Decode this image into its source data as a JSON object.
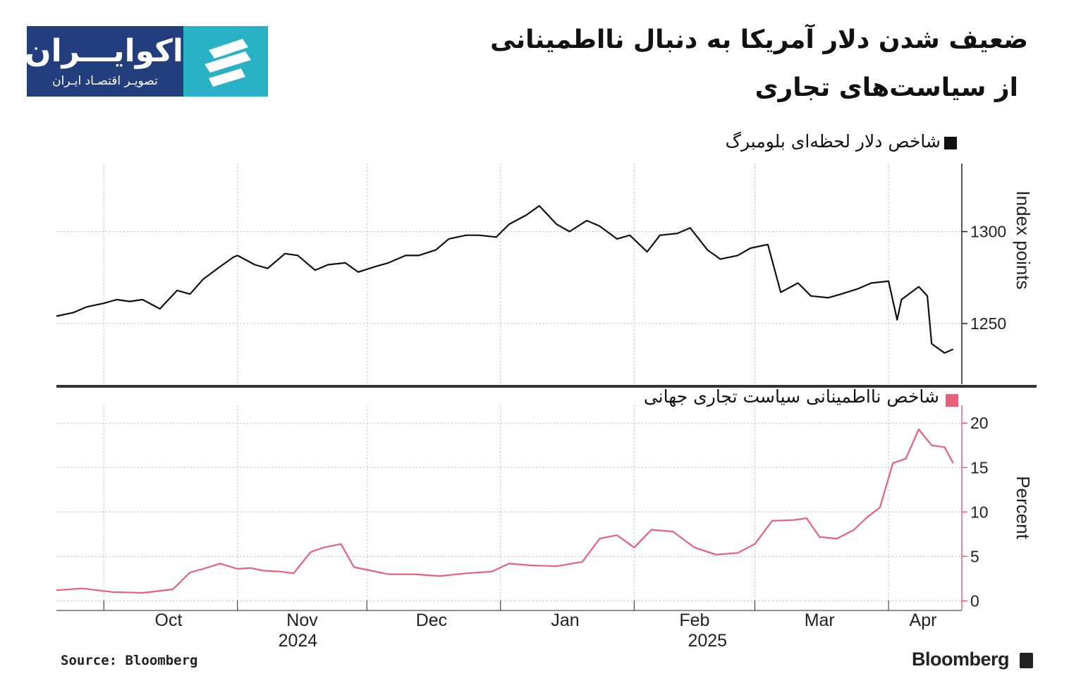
{
  "logo": {
    "name": "اکوایـــران",
    "tagline": "تصویـر اقتصـاد ایـران"
  },
  "title": {
    "line1": "ضعیف شدن دلار آمریکا به دنبال نااطمینانی",
    "line2": "از سیاست‌های تجاری"
  },
  "source": "Source: Bloomberg",
  "brand": "Bloomberg",
  "colors": {
    "dxy_line": "#111111",
    "tpu_line": "#e8607a",
    "tpu_axis": "#e8607a",
    "grid": "#bdbdbd",
    "logo_bg": "#223e7c",
    "logo_accent": "#29b1c5"
  },
  "chart_data": [
    {
      "type": "line",
      "panel": "top",
      "legend_label": "شاخص دلار لحظه‌ای بلومبرگ",
      "ylabel": "Index points",
      "y_ticks": [
        1250,
        1300
      ],
      "ylim": [
        1217,
        1337
      ],
      "grid": true,
      "x_ticks": [
        "Oct",
        "Nov",
        "Dec",
        "Jan",
        "Feb",
        "Mar",
        "Apr"
      ],
      "x_years": [
        "2024",
        "2025"
      ],
      "series": [
        {
          "x": [
            "2024-09-20",
            "2024-09-24",
            "2024-09-27",
            "2024-10-01",
            "2024-10-04",
            "2024-10-07",
            "2024-10-10",
            "2024-10-14",
            "2024-10-18",
            "2024-10-21",
            "2024-10-24",
            "2024-10-28",
            "2024-10-31",
            "2024-11-01",
            "2024-11-05",
            "2024-11-08",
            "2024-11-12",
            "2024-11-15",
            "2024-11-19",
            "2024-11-22",
            "2024-11-26",
            "2024-11-29",
            "2024-12-03",
            "2024-12-06",
            "2024-12-10",
            "2024-12-13",
            "2024-12-17",
            "2024-12-20",
            "2024-12-24",
            "2024-12-27",
            "2024-12-31",
            "2025-01-03",
            "2025-01-07",
            "2025-01-10",
            "2025-01-14",
            "2025-01-17",
            "2025-01-21",
            "2025-01-24",
            "2025-01-28",
            "2025-01-31",
            "2025-02-04",
            "2025-02-07",
            "2025-02-11",
            "2025-02-14",
            "2025-02-18",
            "2025-02-21",
            "2025-02-25",
            "2025-02-28",
            "2025-03-04",
            "2025-03-07",
            "2025-03-11",
            "2025-03-14",
            "2025-03-18",
            "2025-03-21",
            "2025-03-25",
            "2025-03-28",
            "2025-04-01",
            "2025-04-03",
            "2025-04-04",
            "2025-04-08",
            "2025-04-10",
            "2025-04-11",
            "2025-04-14",
            "2025-04-16"
          ],
          "y": [
            1254,
            1256,
            1259,
            1261,
            1263,
            1262,
            1263,
            1258,
            1268,
            1266,
            1274,
            1281,
            1286,
            1287,
            1282,
            1280,
            1288,
            1287,
            1279,
            1282,
            1283,
            1278,
            1281,
            1283,
            1287,
            1287,
            1290,
            1296,
            1298,
            1298,
            1297,
            1304,
            1309,
            1314,
            1304,
            1300,
            1306,
            1303,
            1296,
            1298,
            1289,
            1298,
            1299,
            1302,
            1290,
            1285,
            1287,
            1291,
            1293,
            1267,
            1272,
            1265,
            1264,
            1266,
            1269,
            1272,
            1273,
            1252,
            1263,
            1270,
            1265,
            1239,
            1234,
            1236
          ]
        }
      ]
    },
    {
      "type": "line",
      "panel": "bottom",
      "legend_label": "شاخص نااطمینانی سیاست تجاری جهانی",
      "ylabel": "Percent",
      "y_ticks": [
        0,
        5,
        10,
        15,
        20
      ],
      "ylim": [
        -1,
        22
      ],
      "grid": true,
      "x_ticks": [
        "Oct",
        "Nov",
        "Dec",
        "Jan",
        "Feb",
        "Mar",
        "Apr"
      ],
      "x_years": [
        "2024",
        "2025"
      ],
      "series": [
        {
          "x": [
            "2024-09-20",
            "2024-09-26",
            "2024-10-03",
            "2024-10-10",
            "2024-10-17",
            "2024-10-21",
            "2024-10-24",
            "2024-10-28",
            "2024-11-01",
            "2024-11-04",
            "2024-11-07",
            "2024-11-11",
            "2024-11-14",
            "2024-11-18",
            "2024-11-21",
            "2024-11-25",
            "2024-11-28",
            "2024-12-02",
            "2024-12-06",
            "2024-12-12",
            "2024-12-18",
            "2024-12-24",
            "2024-12-30",
            "2025-01-03",
            "2025-01-08",
            "2025-01-14",
            "2025-01-20",
            "2025-01-24",
            "2025-01-28",
            "2025-02-01",
            "2025-02-05",
            "2025-02-10",
            "2025-02-15",
            "2025-02-20",
            "2025-02-25",
            "2025-03-01",
            "2025-03-05",
            "2025-03-10",
            "2025-03-13",
            "2025-03-16",
            "2025-03-20",
            "2025-03-24",
            "2025-03-27",
            "2025-03-30",
            "2025-04-02",
            "2025-04-05",
            "2025-04-08",
            "2025-04-11",
            "2025-04-14",
            "2025-04-16"
          ],
          "y": [
            1.2,
            1.4,
            1.0,
            0.9,
            1.3,
            3.2,
            3.6,
            4.2,
            3.6,
            3.7,
            3.4,
            3.3,
            3.1,
            5.5,
            6.0,
            6.4,
            3.8,
            3.4,
            3.0,
            3.0,
            2.8,
            3.1,
            3.3,
            4.2,
            4.0,
            3.9,
            4.4,
            7.0,
            7.4,
            6.0,
            8.0,
            7.8,
            6.0,
            5.2,
            5.4,
            6.4,
            9.0,
            9.1,
            9.3,
            7.2,
            7.0,
            8.0,
            9.4,
            10.5,
            15.5,
            16.0,
            19.3,
            17.5,
            17.3,
            15.5
          ]
        }
      ]
    }
  ]
}
